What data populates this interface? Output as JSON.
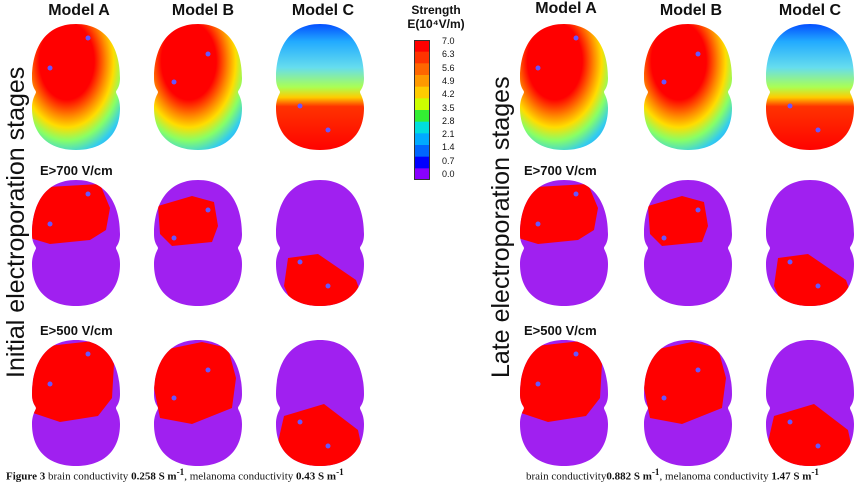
{
  "panels": {
    "left": {
      "side_label": "Initial electroporation stages",
      "models": [
        "Model A",
        "Model B",
        "Model C"
      ],
      "row_labels": [
        "E>700 V/cm",
        "E>500 V/cm"
      ],
      "caption": {
        "figure": "Figure 3",
        "text1": "brain conductivity",
        "value1": "0.258 S m",
        "text2": ", melanoma conductivity",
        "value2": "0.43 S m"
      }
    },
    "right": {
      "side_label": "Late electroporation stages",
      "models": [
        "Model A",
        "Model B",
        "Model C"
      ],
      "row_labels": [
        "E>700 V/cm",
        "E>500 V/cm"
      ],
      "caption": {
        "text1": "brain conductivity",
        "value1": "0.882 S m",
        "text2": ", melanoma conductivity",
        "value2": "1.47 S m"
      }
    }
  },
  "legend": {
    "title1": "Strength",
    "title2": "E(10⁴V/m)",
    "ticks": [
      "7.0",
      "6.3",
      "5.6",
      "4.9",
      "4.2",
      "3.5",
      "2.8",
      "2.1",
      "1.4",
      "0.7",
      "0.0"
    ],
    "colors": [
      "#ff0000",
      "#ff3300",
      "#ff6600",
      "#ff9900",
      "#ffcc00",
      "#ccff00",
      "#33ee33",
      "#00dddd",
      "#00aaff",
      "#0066ff",
      "#0000ff",
      "#8800ff"
    ]
  },
  "colors": {
    "threshold_fill": "#a020f0",
    "electroporated": "#ff0000",
    "electrode": "#6655ff"
  }
}
